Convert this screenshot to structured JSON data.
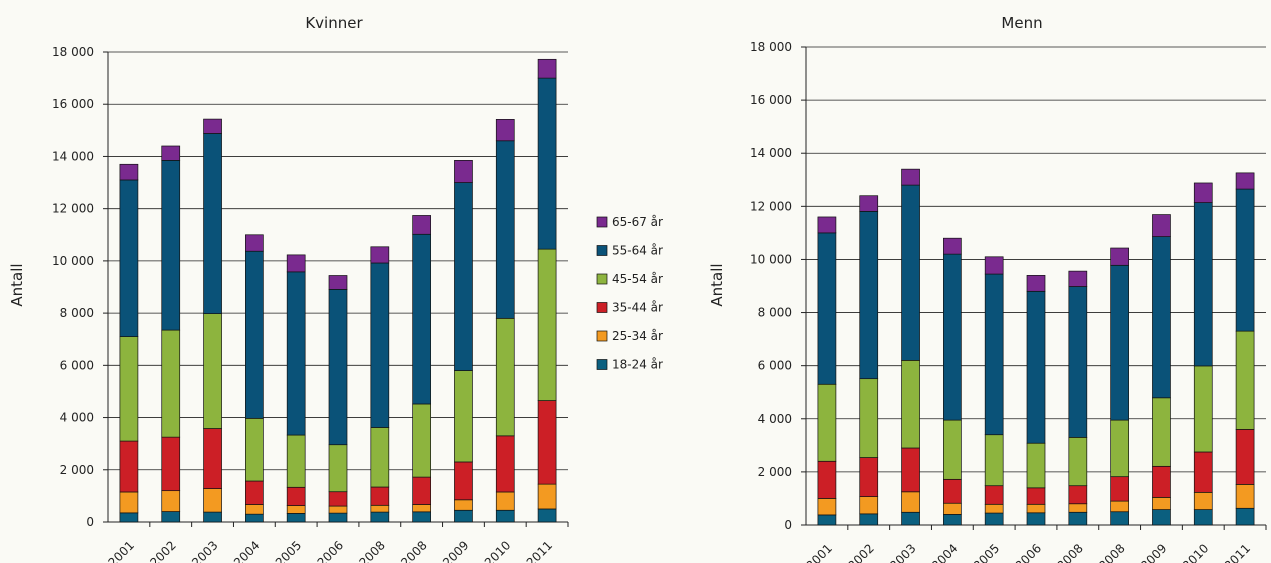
{
  "colors": {
    "18-24 år": "#0b5f7f",
    "25-34 år": "#f39a21",
    "35-44 år": "#cc1f26",
    "45-54 år": "#8db43e",
    "55-64 år": "#0a5278",
    "65-67 år": "#7a2a8f"
  },
  "chart_data": [
    {
      "type": "bar",
      "stacked": true,
      "title": "Kvinner",
      "ylabel": "Antall",
      "xlabel": "",
      "ylim": [
        0,
        18000
      ],
      "yticks": [
        "0",
        "2 000",
        "4 000",
        "6 000",
        "8 000",
        "10 000",
        "12 000",
        "14 000",
        "16 000",
        "18 000"
      ],
      "grid": true,
      "categories": [
        "2001",
        "2002",
        "2003",
        "2004",
        "2005",
        "2006",
        "2008",
        "2008",
        "2009",
        "2010",
        "2011"
      ],
      "series": [
        {
          "name": "18-24 år",
          "values": [
            350,
            400,
            380,
            300,
            330,
            340,
            380,
            390,
            450,
            450,
            500
          ]
        },
        {
          "name": "25-34 år",
          "values": [
            800,
            800,
            900,
            370,
            300,
            270,
            260,
            280,
            400,
            700,
            950
          ]
        },
        {
          "name": "35-44 år",
          "values": [
            1950,
            2050,
            2300,
            900,
            700,
            550,
            700,
            1050,
            1450,
            2150,
            3200
          ]
        },
        {
          "name": "45-54 år",
          "values": [
            4000,
            4100,
            4400,
            2400,
            2000,
            1800,
            2280,
            2800,
            3500,
            4500,
            5800
          ]
        },
        {
          "name": "55-64 år",
          "values": [
            6000,
            6500,
            6900,
            6400,
            6250,
            5950,
            6300,
            6500,
            7200,
            6800,
            6550
          ]
        },
        {
          "name": "65-67 år",
          "values": [
            600,
            550,
            550,
            630,
            650,
            530,
            620,
            720,
            850,
            820,
            720
          ]
        }
      ]
    },
    {
      "type": "bar",
      "stacked": true,
      "title": "Menn",
      "ylabel": "Antall",
      "xlabel": "",
      "ylim": [
        0,
        18000
      ],
      "yticks": [
        "0",
        "2 000",
        "4 000",
        "6 000",
        "8 000",
        "10 000",
        "12 000",
        "14 000",
        "16 000",
        "18 000"
      ],
      "grid": true,
      "categories": [
        "2001",
        "2002",
        "2003",
        "2004",
        "2005",
        "2006",
        "2008",
        "2008",
        "2009",
        "2010",
        "2011"
      ],
      "series": [
        {
          "name": "18-24 år",
          "values": [
            380,
            420,
            480,
            400,
            450,
            460,
            480,
            500,
            580,
            580,
            630
          ]
        },
        {
          "name": "25-34 år",
          "values": [
            620,
            650,
            770,
            420,
            330,
            320,
            320,
            400,
            460,
            650,
            900
          ]
        },
        {
          "name": "35-44 år",
          "values": [
            1400,
            1470,
            1650,
            900,
            700,
            620,
            680,
            920,
            1170,
            1520,
            2070
          ]
        },
        {
          "name": "45-54 år",
          "values": [
            2900,
            2970,
            3300,
            2230,
            1920,
            1680,
            1820,
            2130,
            2580,
            3240,
            3700
          ]
        },
        {
          "name": "55-64 år",
          "values": [
            5700,
            6300,
            6600,
            6250,
            6050,
            5720,
            5680,
            5830,
            6070,
            6150,
            5350
          ]
        },
        {
          "name": "65-67 år",
          "values": [
            600,
            590,
            600,
            600,
            650,
            600,
            580,
            650,
            830,
            740,
            610
          ]
        }
      ]
    }
  ]
}
